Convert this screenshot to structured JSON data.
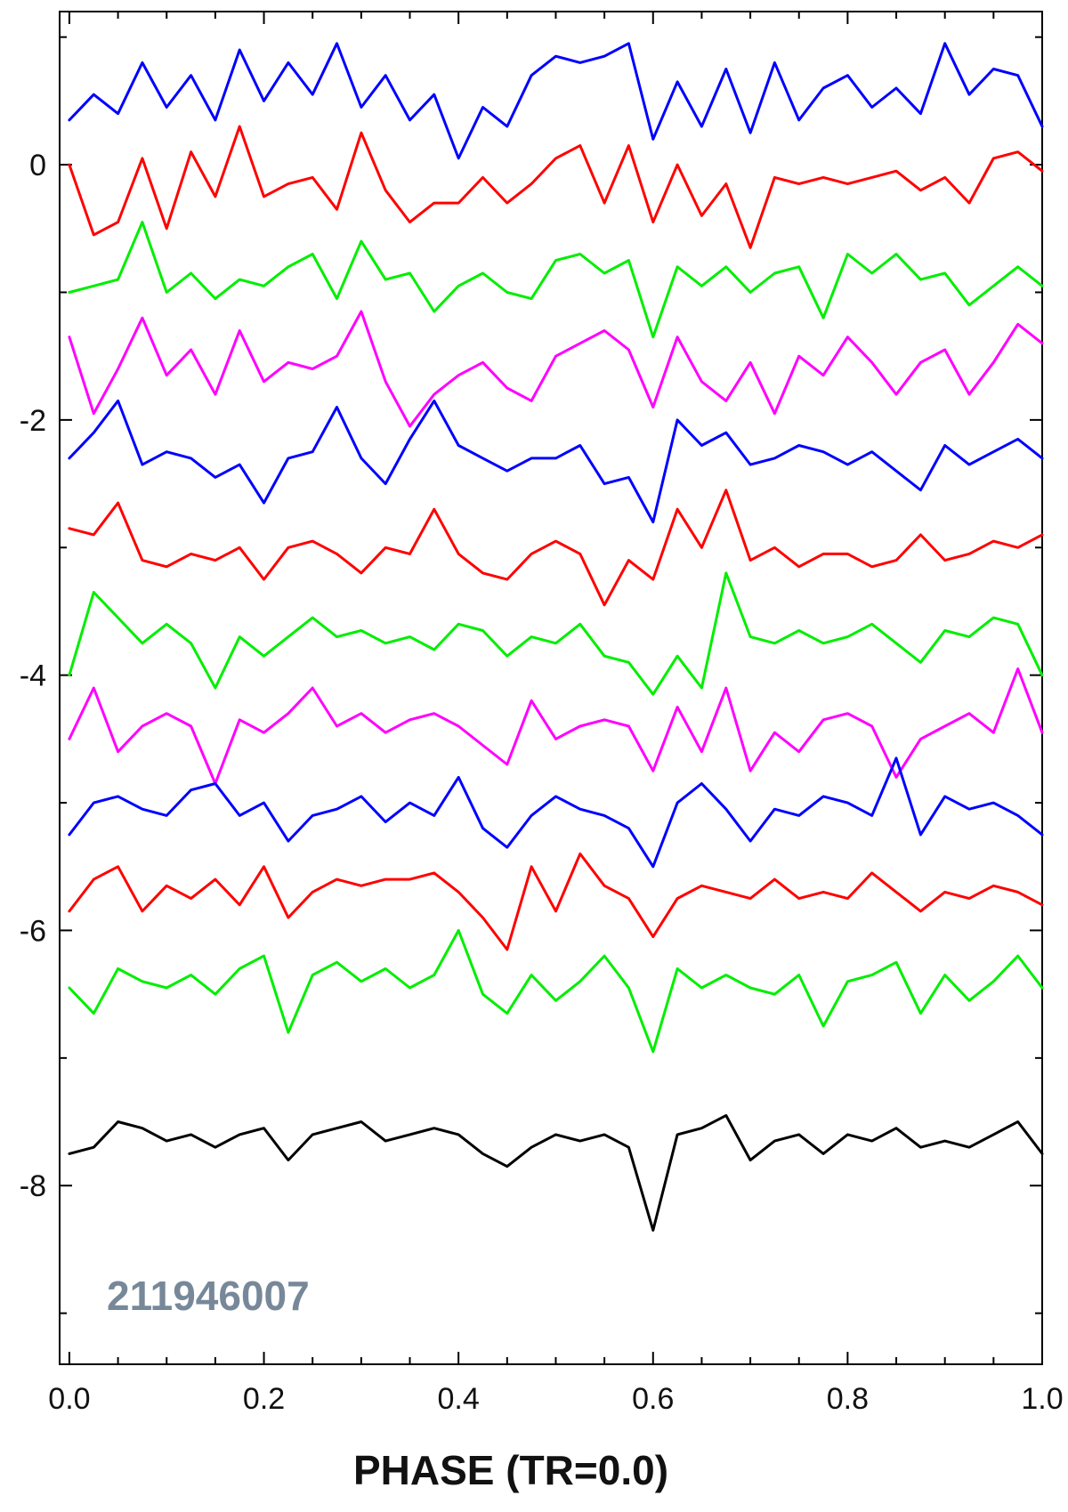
{
  "chart_data": {
    "type": "line",
    "title": "",
    "xlabel": "PHASE (TR=0.0)",
    "ylabel": "",
    "xlim": [
      -0.01,
      1.0
    ],
    "ylim": [
      -9.4,
      1.2
    ],
    "x_ticks": [
      0.0,
      0.2,
      0.4,
      0.6,
      0.8,
      1.0
    ],
    "x_tick_labels": [
      "0.0",
      "0.2",
      "0.4",
      "0.6",
      "0.8",
      "1.0"
    ],
    "y_ticks": [
      0,
      -2,
      -4,
      -6,
      -8
    ],
    "y_tick_labels": [
      "0",
      "-2",
      "-4",
      "-6",
      "-8"
    ],
    "grid": false,
    "legend": "none",
    "annotation": {
      "text": "211946007",
      "color": "#778899"
    },
    "x": [
      0.0,
      0.025,
      0.05,
      0.075,
      0.1,
      0.125,
      0.15,
      0.175,
      0.2,
      0.225,
      0.25,
      0.275,
      0.3,
      0.325,
      0.35,
      0.375,
      0.4,
      0.425,
      0.45,
      0.475,
      0.5,
      0.525,
      0.55,
      0.575,
      0.6,
      0.625,
      0.65,
      0.675,
      0.7,
      0.725,
      0.75,
      0.775,
      0.8,
      0.825,
      0.85,
      0.875,
      0.9,
      0.925,
      0.95,
      0.975,
      1.0
    ],
    "series": [
      {
        "color": "#0000ff",
        "values": [
          0.35,
          0.55,
          0.4,
          0.8,
          0.45,
          0.7,
          0.35,
          0.9,
          0.5,
          0.8,
          0.55,
          0.95,
          0.45,
          0.7,
          0.35,
          0.55,
          0.05,
          0.45,
          0.3,
          0.7,
          0.85,
          0.8,
          0.85,
          0.95,
          0.2,
          0.65,
          0.3,
          0.75,
          0.25,
          0.8,
          0.35,
          0.6,
          0.7,
          0.45,
          0.6,
          0.4,
          0.95,
          0.55,
          0.75,
          0.7,
          0.3
        ]
      },
      {
        "color": "#ff0000",
        "values": [
          0.0,
          -0.55,
          -0.45,
          0.05,
          -0.5,
          0.1,
          -0.25,
          0.3,
          -0.25,
          -0.15,
          -0.1,
          -0.35,
          0.25,
          -0.2,
          -0.45,
          -0.3,
          -0.3,
          -0.1,
          -0.3,
          -0.15,
          0.05,
          0.15,
          -0.3,
          0.15,
          -0.45,
          0.0,
          -0.4,
          -0.15,
          -0.65,
          -0.1,
          -0.15,
          -0.1,
          -0.15,
          -0.1,
          -0.05,
          -0.2,
          -0.1,
          -0.3,
          0.05,
          0.1,
          -0.05
        ]
      },
      {
        "color": "#00ee00",
        "values": [
          -1.0,
          -0.95,
          -0.9,
          -0.45,
          -1.0,
          -0.85,
          -1.05,
          -0.9,
          -0.95,
          -0.8,
          -0.7,
          -1.05,
          -0.6,
          -0.9,
          -0.85,
          -1.15,
          -0.95,
          -0.85,
          -1.0,
          -1.05,
          -0.75,
          -0.7,
          -0.85,
          -0.75,
          -1.35,
          -0.8,
          -0.95,
          -0.8,
          -1.0,
          -0.85,
          -0.8,
          -1.2,
          -0.7,
          -0.85,
          -0.7,
          -0.9,
          -0.85,
          -1.1,
          -0.95,
          -0.8,
          -0.95
        ]
      },
      {
        "color": "#ff00ff",
        "values": [
          -1.35,
          -1.95,
          -1.6,
          -1.2,
          -1.65,
          -1.45,
          -1.8,
          -1.3,
          -1.7,
          -1.55,
          -1.6,
          -1.5,
          -1.15,
          -1.7,
          -2.05,
          -1.8,
          -1.65,
          -1.55,
          -1.75,
          -1.85,
          -1.5,
          -1.4,
          -1.3,
          -1.45,
          -1.9,
          -1.35,
          -1.7,
          -1.85,
          -1.55,
          -1.95,
          -1.5,
          -1.65,
          -1.35,
          -1.55,
          -1.8,
          -1.55,
          -1.45,
          -1.8,
          -1.55,
          -1.25,
          -1.4
        ]
      },
      {
        "color": "#0000ff",
        "values": [
          -2.3,
          -2.1,
          -1.85,
          -2.35,
          -2.25,
          -2.3,
          -2.45,
          -2.35,
          -2.65,
          -2.3,
          -2.25,
          -1.9,
          -2.3,
          -2.5,
          -2.15,
          -1.85,
          -2.2,
          -2.3,
          -2.4,
          -2.3,
          -2.3,
          -2.2,
          -2.5,
          -2.45,
          -2.8,
          -2.0,
          -2.2,
          -2.1,
          -2.35,
          -2.3,
          -2.2,
          -2.25,
          -2.35,
          -2.25,
          -2.4,
          -2.55,
          -2.2,
          -2.35,
          -2.25,
          -2.15,
          -2.3
        ]
      },
      {
        "color": "#ff0000",
        "values": [
          -2.85,
          -2.9,
          -2.65,
          -3.1,
          -3.15,
          -3.05,
          -3.1,
          -3.0,
          -3.25,
          -3.0,
          -2.95,
          -3.05,
          -3.2,
          -3.0,
          -3.05,
          -2.7,
          -3.05,
          -3.2,
          -3.25,
          -3.05,
          -2.95,
          -3.05,
          -3.45,
          -3.1,
          -3.25,
          -2.7,
          -3.0,
          -2.55,
          -3.1,
          -3.0,
          -3.15,
          -3.05,
          -3.05,
          -3.15,
          -3.1,
          -2.9,
          -3.1,
          -3.05,
          -2.95,
          -3.0,
          -2.9
        ]
      },
      {
        "color": "#00ee00",
        "values": [
          -4.0,
          -3.35,
          -3.55,
          -3.75,
          -3.6,
          -3.75,
          -4.1,
          -3.7,
          -3.85,
          -3.7,
          -3.55,
          -3.7,
          -3.65,
          -3.75,
          -3.7,
          -3.8,
          -3.6,
          -3.65,
          -3.85,
          -3.7,
          -3.75,
          -3.6,
          -3.85,
          -3.9,
          -4.15,
          -3.85,
          -4.1,
          -3.2,
          -3.7,
          -3.75,
          -3.65,
          -3.75,
          -3.7,
          -3.6,
          -3.75,
          -3.9,
          -3.65,
          -3.7,
          -3.55,
          -3.6,
          -4.0
        ]
      },
      {
        "color": "#ff00ff",
        "values": [
          -4.5,
          -4.1,
          -4.6,
          -4.4,
          -4.3,
          -4.4,
          -4.85,
          -4.35,
          -4.45,
          -4.3,
          -4.1,
          -4.4,
          -4.3,
          -4.45,
          -4.35,
          -4.3,
          -4.4,
          -4.55,
          -4.7,
          -4.2,
          -4.5,
          -4.4,
          -4.35,
          -4.4,
          -4.75,
          -4.25,
          -4.6,
          -4.1,
          -4.75,
          -4.45,
          -4.6,
          -4.35,
          -4.3,
          -4.4,
          -4.8,
          -4.5,
          -4.4,
          -4.3,
          -4.45,
          -3.95,
          -4.45
        ]
      },
      {
        "color": "#0000ff",
        "values": [
          -5.25,
          -5.0,
          -4.95,
          -5.05,
          -5.1,
          -4.9,
          -4.85,
          -5.1,
          -5.0,
          -5.3,
          -5.1,
          -5.05,
          -4.95,
          -5.15,
          -5.0,
          -5.1,
          -4.8,
          -5.2,
          -5.35,
          -5.1,
          -4.95,
          -5.05,
          -5.1,
          -5.2,
          -5.5,
          -5.0,
          -4.85,
          -5.05,
          -5.3,
          -5.05,
          -5.1,
          -4.95,
          -5.0,
          -5.1,
          -4.65,
          -5.25,
          -4.95,
          -5.05,
          -5.0,
          -5.1,
          -5.25
        ]
      },
      {
        "color": "#ff0000",
        "values": [
          -5.85,
          -5.6,
          -5.5,
          -5.85,
          -5.65,
          -5.75,
          -5.6,
          -5.8,
          -5.5,
          -5.9,
          -5.7,
          -5.6,
          -5.65,
          -5.6,
          -5.6,
          -5.55,
          -5.7,
          -5.9,
          -6.15,
          -5.5,
          -5.85,
          -5.4,
          -5.65,
          -5.75,
          -6.05,
          -5.75,
          -5.65,
          -5.7,
          -5.75,
          -5.6,
          -5.75,
          -5.7,
          -5.75,
          -5.55,
          -5.7,
          -5.85,
          -5.7,
          -5.75,
          -5.65,
          -5.7,
          -5.8
        ]
      },
      {
        "color": "#00ee00",
        "values": [
          -6.45,
          -6.65,
          -6.3,
          -6.4,
          -6.45,
          -6.35,
          -6.5,
          -6.3,
          -6.2,
          -6.8,
          -6.35,
          -6.25,
          -6.4,
          -6.3,
          -6.45,
          -6.35,
          -6.0,
          -6.5,
          -6.65,
          -6.35,
          -6.55,
          -6.4,
          -6.2,
          -6.45,
          -6.95,
          -6.3,
          -6.45,
          -6.35,
          -6.45,
          -6.5,
          -6.35,
          -6.75,
          -6.4,
          -6.35,
          -6.25,
          -6.65,
          -6.35,
          -6.55,
          -6.4,
          -6.2,
          -6.45
        ]
      },
      {
        "color": "#000000",
        "values": [
          -7.75,
          -7.7,
          -7.5,
          -7.55,
          -7.65,
          -7.6,
          -7.7,
          -7.6,
          -7.55,
          -7.8,
          -7.6,
          -7.55,
          -7.5,
          -7.65,
          -7.6,
          -7.55,
          -7.6,
          -7.75,
          -7.85,
          -7.7,
          -7.6,
          -7.65,
          -7.6,
          -7.7,
          -8.35,
          -7.6,
          -7.55,
          -7.45,
          -7.8,
          -7.65,
          -7.6,
          -7.75,
          -7.6,
          -7.65,
          -7.55,
          -7.7,
          -7.65,
          -7.7,
          -7.6,
          -7.5,
          -7.75
        ]
      }
    ]
  }
}
